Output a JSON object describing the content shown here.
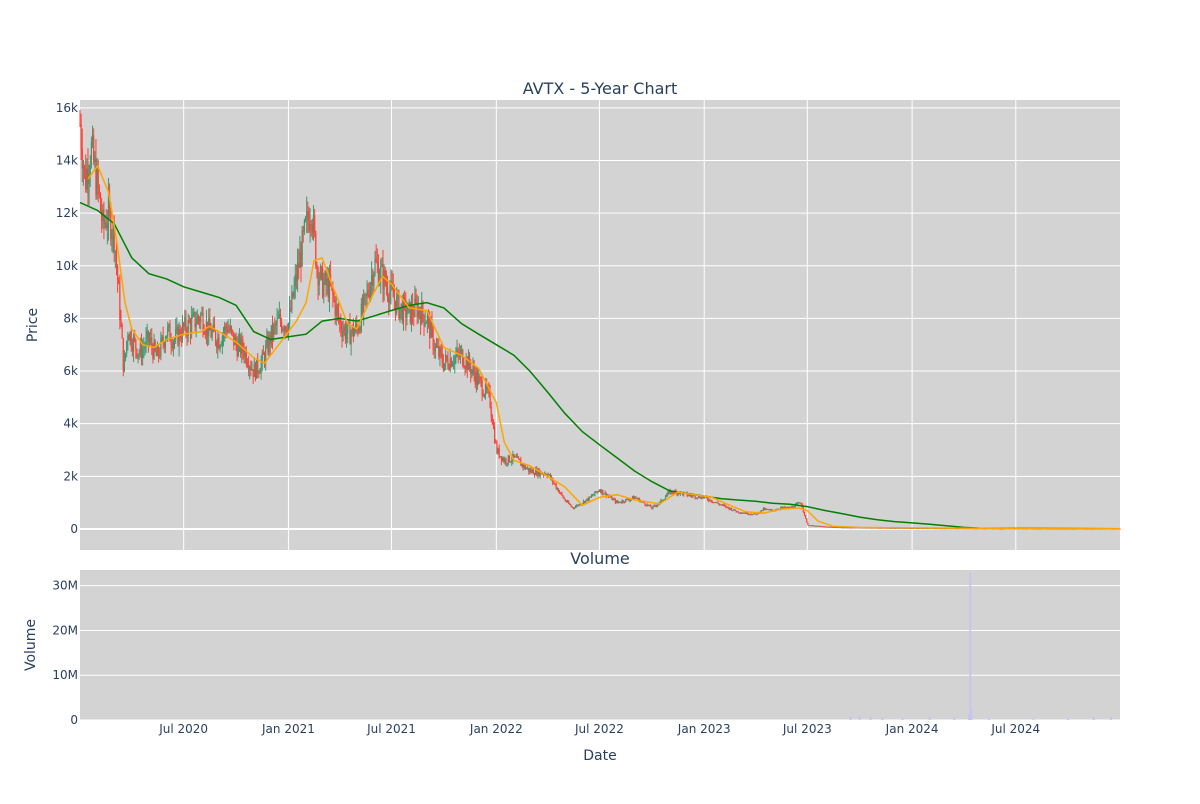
{
  "title": "AVTX - 5-Year Chart",
  "volume_title": "Volume",
  "colors": {
    "plot_bg": "#d3d3d3",
    "grid": "#ffffff",
    "text": "#2a3f5f",
    "increasing": "#3d9970",
    "decreasing": "#ff4136",
    "ma_short": "#ffa500",
    "ma_long": "#008000",
    "volume_bar": "#c8c4f0"
  },
  "chart_data": [
    {
      "type": "candlestick",
      "title": "AVTX - 5-Year Chart",
      "ylabel": "Price",
      "xlabel": "Date",
      "x_range": [
        "2020-01-01",
        "2024-12-31"
      ],
      "ylim": [
        -800,
        16300
      ],
      "yticks": [
        0,
        2000,
        4000,
        6000,
        8000,
        10000,
        12000,
        14000,
        16000
      ],
      "ytick_labels": [
        "0",
        "2k",
        "4k",
        "6k",
        "8k",
        "10k",
        "12k",
        "14k",
        "16k"
      ],
      "xticks": [
        "2020-07-01",
        "2021-01-01",
        "2021-07-01",
        "2022-01-01",
        "2022-07-01",
        "2023-01-01",
        "2023-07-01",
        "2024-01-01",
        "2024-07-01"
      ],
      "xtick_labels": [
        "Jul 2020",
        "Jan 2021",
        "Jul 2021",
        "Jan 2022",
        "Jul 2022",
        "Jan 2023",
        "Jul 2023",
        "Jan 2024",
        "Jul 2024"
      ],
      "grid": true,
      "price_path": [
        [
          "2020-01-01",
          15400
        ],
        [
          "2020-01-10",
          13200
        ],
        [
          "2020-01-20",
          14500
        ],
        [
          "2020-02-01",
          13000
        ],
        [
          "2020-02-10",
          11500
        ],
        [
          "2020-02-20",
          12000
        ],
        [
          "2020-03-01",
          11200
        ],
        [
          "2020-03-10",
          8600
        ],
        [
          "2020-03-18",
          6000
        ],
        [
          "2020-03-25",
          7600
        ],
        [
          "2020-04-01",
          7200
        ],
        [
          "2020-04-15",
          6700
        ],
        [
          "2020-05-01",
          7200
        ],
        [
          "2020-05-15",
          6500
        ],
        [
          "2020-06-01",
          7500
        ],
        [
          "2020-06-15",
          7200
        ],
        [
          "2020-07-01",
          7600
        ],
        [
          "2020-07-15",
          7800
        ],
        [
          "2020-08-01",
          8100
        ],
        [
          "2020-08-15",
          7500
        ],
        [
          "2020-09-01",
          7200
        ],
        [
          "2020-09-15",
          7700
        ],
        [
          "2020-10-01",
          7000
        ],
        [
          "2020-10-15",
          6800
        ],
        [
          "2020-11-01",
          6000
        ],
        [
          "2020-11-15",
          6300
        ],
        [
          "2020-12-01",
          7300
        ],
        [
          "2020-12-15",
          7900
        ],
        [
          "2021-01-01",
          7800
        ],
        [
          "2021-01-15",
          9600
        ],
        [
          "2021-02-01",
          11500
        ],
        [
          "2021-02-10",
          12300
        ],
        [
          "2021-02-20",
          10000
        ],
        [
          "2021-03-01",
          9300
        ],
        [
          "2021-03-15",
          9200
        ],
        [
          "2021-04-01",
          7800
        ],
        [
          "2021-04-15",
          7400
        ],
        [
          "2021-05-01",
          7600
        ],
        [
          "2021-05-15",
          8500
        ],
        [
          "2021-06-01",
          10100
        ],
        [
          "2021-06-15",
          9600
        ],
        [
          "2021-07-01",
          8900
        ],
        [
          "2021-07-15",
          8400
        ],
        [
          "2021-08-01",
          8200
        ],
        [
          "2021-08-15",
          8400
        ],
        [
          "2021-09-01",
          8000
        ],
        [
          "2021-09-15",
          6900
        ],
        [
          "2021-10-01",
          6300
        ],
        [
          "2021-10-15",
          6500
        ],
        [
          "2021-11-01",
          6600
        ],
        [
          "2021-11-15",
          6200
        ],
        [
          "2021-12-01",
          5600
        ],
        [
          "2021-12-20",
          5000
        ],
        [
          "2022-01-01",
          3000
        ],
        [
          "2022-01-15",
          2600
        ],
        [
          "2022-02-01",
          2700
        ],
        [
          "2022-03-01",
          2200
        ],
        [
          "2022-04-01",
          2100
        ],
        [
          "2022-05-01",
          1100
        ],
        [
          "2022-05-15",
          800
        ],
        [
          "2022-06-01",
          1000
        ],
        [
          "2022-06-15",
          1200
        ],
        [
          "2022-07-01",
          1500
        ],
        [
          "2022-08-01",
          1000
        ],
        [
          "2022-09-01",
          1200
        ],
        [
          "2022-10-01",
          800
        ],
        [
          "2022-10-15",
          1000
        ],
        [
          "2022-11-01",
          1400
        ],
        [
          "2022-11-15",
          1400
        ],
        [
          "2022-12-01",
          1300
        ],
        [
          "2023-01-01",
          1200
        ],
        [
          "2023-02-01",
          900
        ],
        [
          "2023-03-01",
          650
        ],
        [
          "2023-04-01",
          550
        ],
        [
          "2023-04-15",
          750
        ],
        [
          "2023-05-01",
          700
        ],
        [
          "2023-05-15",
          800
        ],
        [
          "2023-06-01",
          800
        ],
        [
          "2023-06-20",
          1000
        ],
        [
          "2023-07-01",
          150
        ],
        [
          "2023-08-01",
          90
        ],
        [
          "2023-09-01",
          60
        ],
        [
          "2023-10-01",
          55
        ],
        [
          "2023-11-01",
          45
        ],
        [
          "2023-12-01",
          40
        ],
        [
          "2024-01-01",
          35
        ],
        [
          "2024-03-01",
          25
        ],
        [
          "2024-04-15",
          20
        ],
        [
          "2024-06-01",
          15
        ],
        [
          "2024-09-01",
          10
        ],
        [
          "2024-12-31",
          8
        ]
      ],
      "ma_short": [
        [
          "2020-01-15",
          13300
        ],
        [
          "2020-02-01",
          13800
        ],
        [
          "2020-02-20",
          12800
        ],
        [
          "2020-03-05",
          11000
        ],
        [
          "2020-03-20",
          8600
        ],
        [
          "2020-04-01",
          7600
        ],
        [
          "2020-04-20",
          7000
        ],
        [
          "2020-05-10",
          6900
        ],
        [
          "2020-06-01",
          7200
        ],
        [
          "2020-07-01",
          7400
        ],
        [
          "2020-08-01",
          7500
        ],
        [
          "2020-08-15",
          7700
        ],
        [
          "2020-09-01",
          7500
        ],
        [
          "2020-10-01",
          7100
        ],
        [
          "2020-11-01",
          6500
        ],
        [
          "2020-11-20",
          6300
        ],
        [
          "2020-12-15",
          7000
        ],
        [
          "2021-01-15",
          7900
        ],
        [
          "2021-02-01",
          8600
        ],
        [
          "2021-02-15",
          10200
        ],
        [
          "2021-03-01",
          10300
        ],
        [
          "2021-03-20",
          9200
        ],
        [
          "2021-04-15",
          7800
        ],
        [
          "2021-05-01",
          7600
        ],
        [
          "2021-05-20",
          8500
        ],
        [
          "2021-06-15",
          9600
        ],
        [
          "2021-07-01",
          9300
        ],
        [
          "2021-08-01",
          8400
        ],
        [
          "2021-09-01",
          8300
        ],
        [
          "2021-10-01",
          6900
        ],
        [
          "2021-11-01",
          6600
        ],
        [
          "2021-12-01",
          6100
        ],
        [
          "2022-01-01",
          4800
        ],
        [
          "2022-01-15",
          3300
        ],
        [
          "2022-02-01",
          2600
        ],
        [
          "2022-03-01",
          2400
        ],
        [
          "2022-04-01",
          2000
        ],
        [
          "2022-05-01",
          1600
        ],
        [
          "2022-06-01",
          900
        ],
        [
          "2022-07-01",
          1200
        ],
        [
          "2022-08-01",
          1300
        ],
        [
          "2022-09-01",
          1100
        ],
        [
          "2022-10-15",
          950
        ],
        [
          "2022-11-15",
          1400
        ],
        [
          "2022-12-15",
          1300
        ],
        [
          "2023-01-15",
          1200
        ],
        [
          "2023-02-15",
          900
        ],
        [
          "2023-03-15",
          650
        ],
        [
          "2023-04-15",
          600
        ],
        [
          "2023-05-15",
          750
        ],
        [
          "2023-06-15",
          800
        ],
        [
          "2023-07-01",
          700
        ],
        [
          "2023-07-20",
          300
        ],
        [
          "2023-08-15",
          100
        ],
        [
          "2023-10-01",
          60
        ],
        [
          "2024-01-01",
          40
        ],
        [
          "2024-06-01",
          20
        ],
        [
          "2024-12-31",
          10
        ]
      ],
      "ma_long": [
        [
          "2020-01-01",
          12400
        ],
        [
          "2020-02-01",
          12100
        ],
        [
          "2020-03-01",
          11600
        ],
        [
          "2020-04-01",
          10300
        ],
        [
          "2020-05-01",
          9700
        ],
        [
          "2020-06-01",
          9500
        ],
        [
          "2020-07-01",
          9200
        ],
        [
          "2020-08-01",
          9000
        ],
        [
          "2020-09-01",
          8800
        ],
        [
          "2020-10-01",
          8500
        ],
        [
          "2020-11-01",
          7500
        ],
        [
          "2020-12-01",
          7200
        ],
        [
          "2021-01-01",
          7300
        ],
        [
          "2021-02-01",
          7400
        ],
        [
          "2021-03-01",
          7900
        ],
        [
          "2021-04-01",
          8000
        ],
        [
          "2021-05-01",
          7900
        ],
        [
          "2021-06-01",
          8100
        ],
        [
          "2021-07-01",
          8300
        ],
        [
          "2021-08-01",
          8500
        ],
        [
          "2021-09-01",
          8600
        ],
        [
          "2021-10-01",
          8400
        ],
        [
          "2021-11-01",
          7800
        ],
        [
          "2021-12-01",
          7400
        ],
        [
          "2022-01-01",
          7000
        ],
        [
          "2022-02-01",
          6600
        ],
        [
          "2022-03-01",
          6000
        ],
        [
          "2022-04-01",
          5200
        ],
        [
          "2022-05-01",
          4400
        ],
        [
          "2022-06-01",
          3700
        ],
        [
          "2022-07-01",
          3200
        ],
        [
          "2022-08-01",
          2700
        ],
        [
          "2022-09-01",
          2200
        ],
        [
          "2022-10-01",
          1800
        ],
        [
          "2022-11-01",
          1450
        ],
        [
          "2022-12-01",
          1350
        ],
        [
          "2023-01-01",
          1250
        ],
        [
          "2023-02-01",
          1150
        ],
        [
          "2023-03-01",
          1100
        ],
        [
          "2023-04-01",
          1050
        ],
        [
          "2023-05-01",
          980
        ],
        [
          "2023-06-01",
          940
        ],
        [
          "2023-07-01",
          850
        ],
        [
          "2023-08-01",
          700
        ],
        [
          "2023-09-01",
          580
        ],
        [
          "2023-10-01",
          450
        ],
        [
          "2023-11-01",
          350
        ],
        [
          "2023-12-01",
          280
        ],
        [
          "2024-01-01",
          230
        ],
        [
          "2024-02-01",
          180
        ],
        [
          "2024-03-01",
          120
        ],
        [
          "2024-04-01",
          60
        ],
        [
          "2024-05-01",
          30
        ],
        [
          "2024-07-01",
          25
        ],
        [
          "2024-12-31",
          10
        ]
      ]
    },
    {
      "type": "bar",
      "title": "Volume",
      "ylabel": "Volume",
      "xlabel": "Date",
      "ylim": [
        0,
        33500000
      ],
      "yticks": [
        0,
        10000000,
        20000000,
        30000000
      ],
      "ytick_labels": [
        "0",
        "10M",
        "20M",
        "30M"
      ],
      "grid": true,
      "spikes": [
        [
          "2023-09-15",
          800000
        ],
        [
          "2023-10-01",
          900000
        ],
        [
          "2023-10-20",
          700000
        ],
        [
          "2023-11-10",
          500000
        ],
        [
          "2023-12-15",
          400000
        ],
        [
          "2024-02-01",
          600000
        ],
        [
          "2024-03-15",
          500000
        ],
        [
          "2024-04-10",
          1200000
        ],
        [
          "2024-04-12",
          33000000
        ],
        [
          "2024-04-14",
          2500000
        ],
        [
          "2024-05-15",
          400000
        ],
        [
          "2024-08-01",
          300000
        ],
        [
          "2024-10-01",
          350000
        ],
        [
          "2024-11-15",
          600000
        ],
        [
          "2024-12-15",
          700000
        ]
      ]
    }
  ]
}
